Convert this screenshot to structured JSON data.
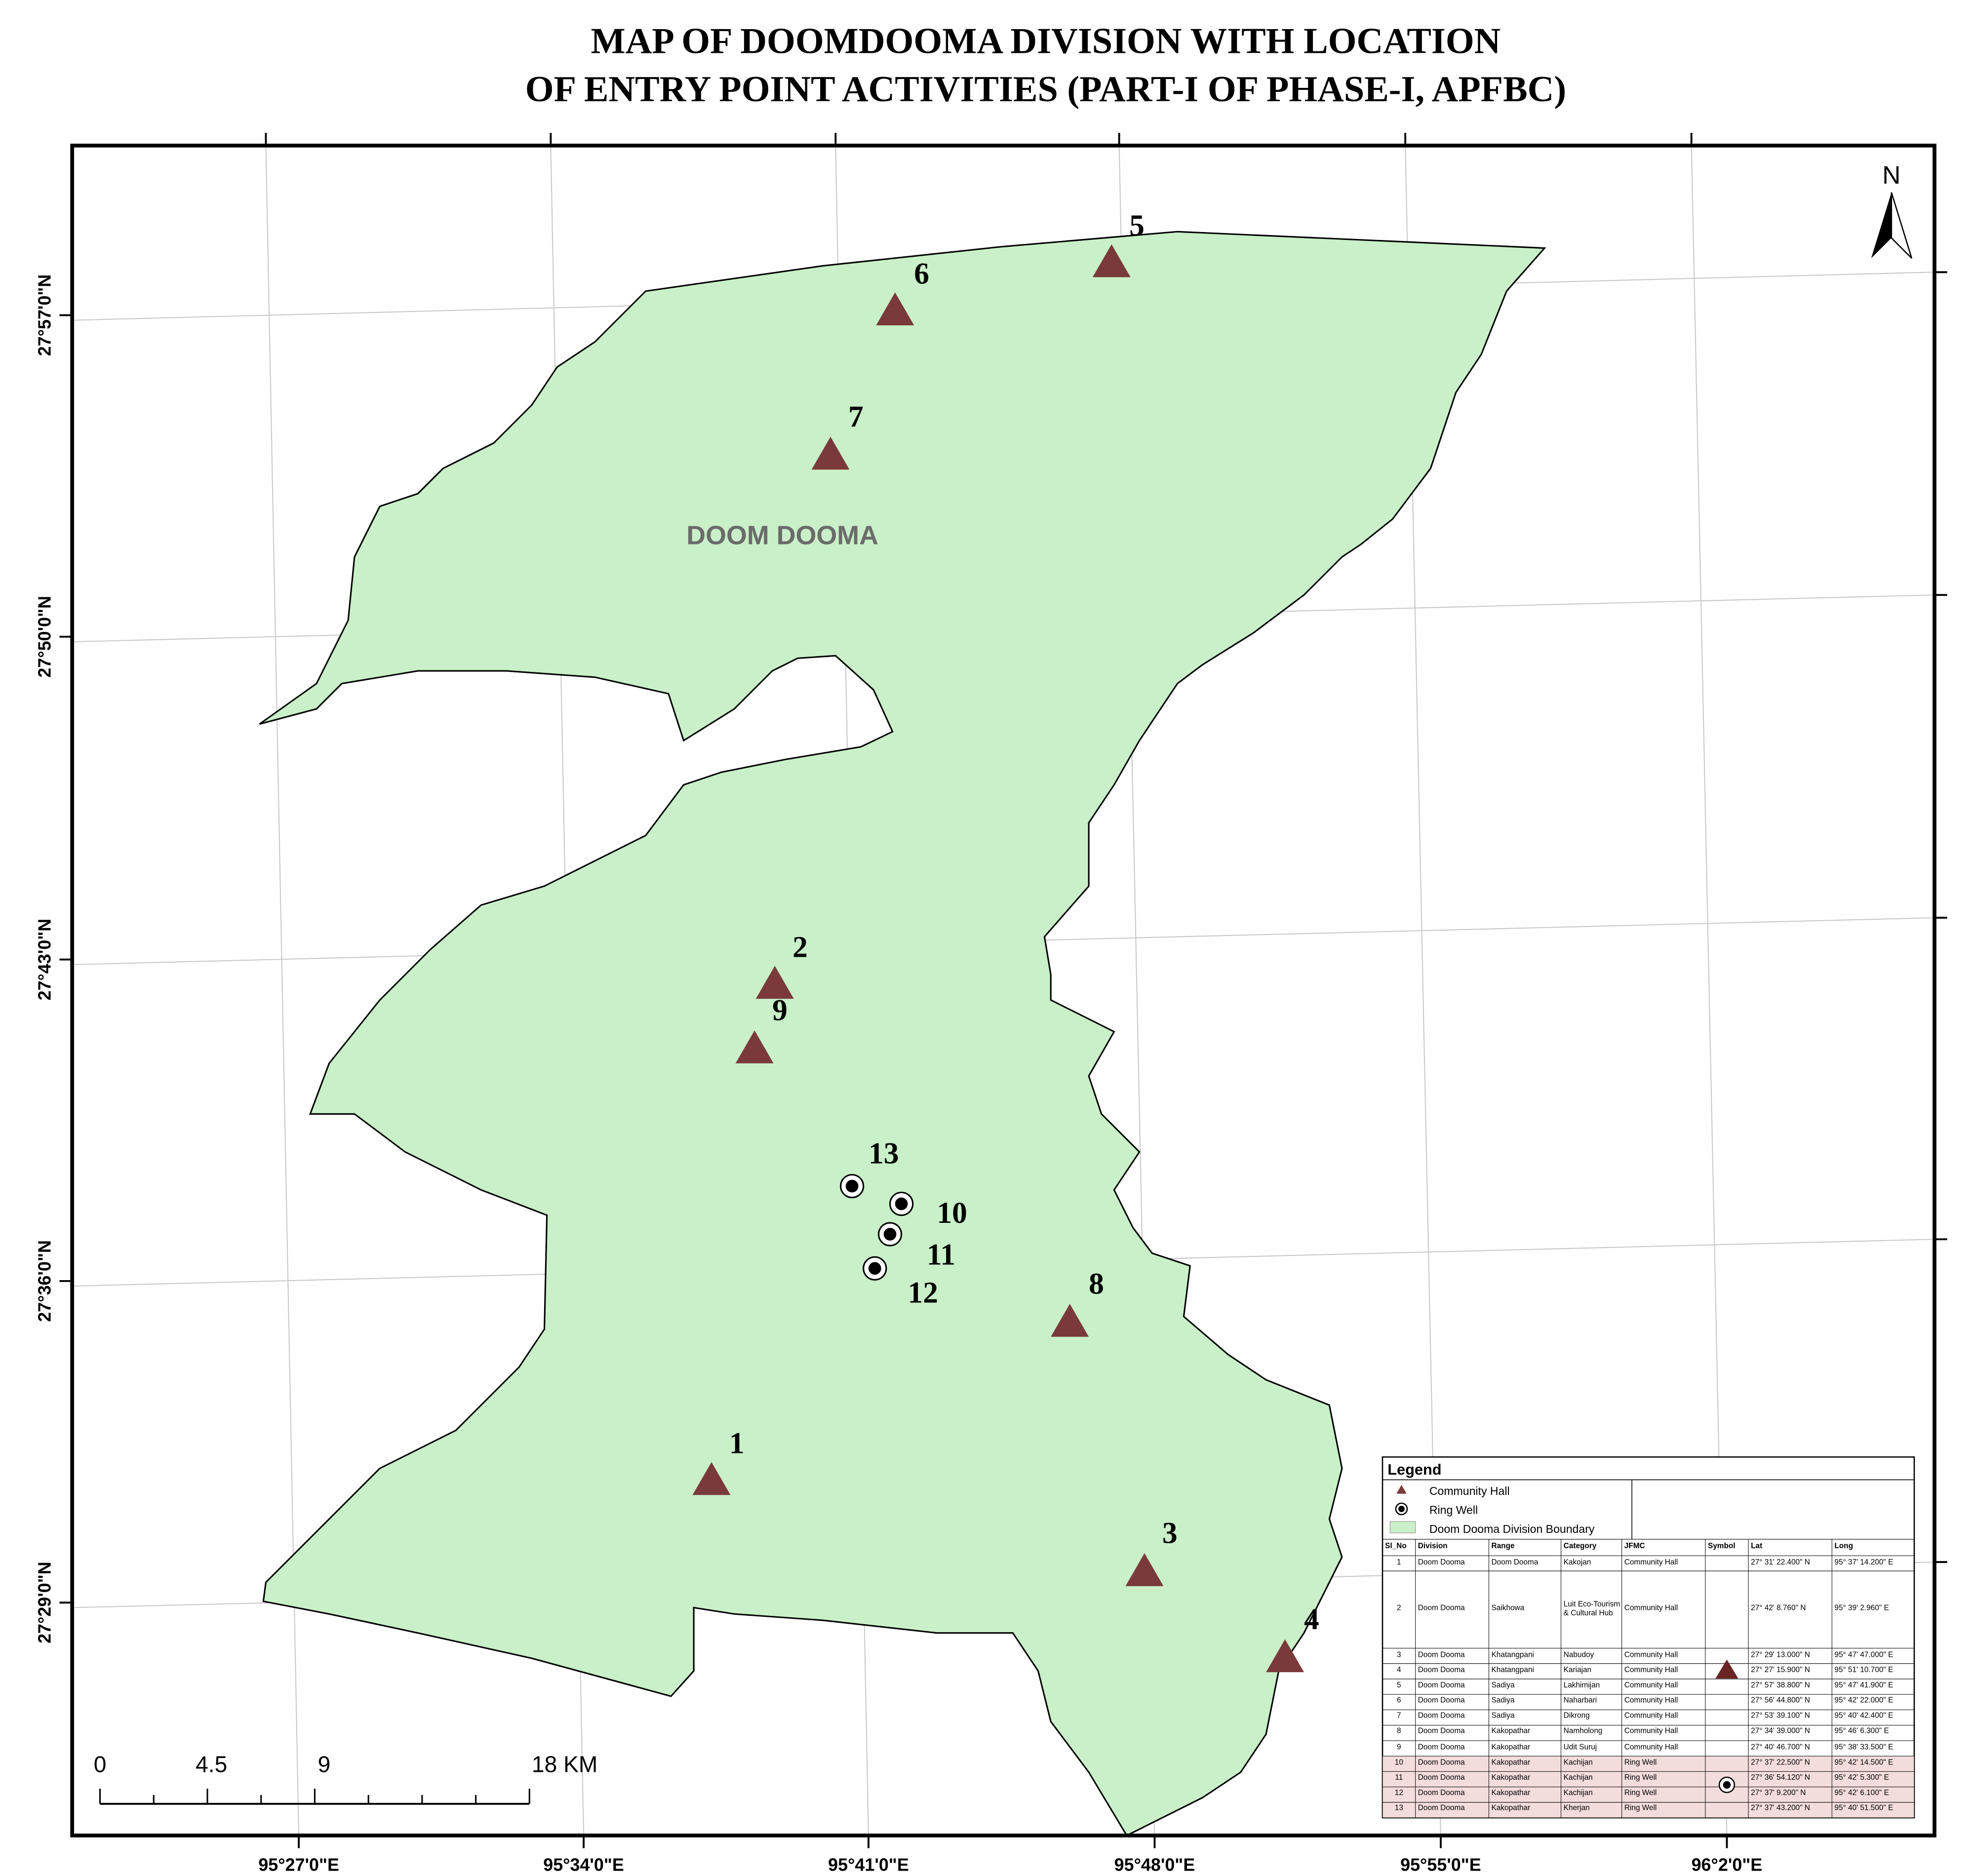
{
  "title": [
    "MAP OF DOOMDOOMA DIVISION WITH LOCATION",
    "OF ENTRY POINT ACTIVITIES (PART-I OF PHASE-I, APFBC)"
  ],
  "map": {
    "region_label": "DOOM DOOMA",
    "north": "N",
    "lon_labels": [
      "95°27'0\"E",
      "95°34'0\"E",
      "95°41'0\"E",
      "95°48'0\"E",
      "95°55'0\"E",
      "96°2'0\"E"
    ],
    "lat_labels": [
      "27°57'0\"N",
      "27°50'0\"N",
      "27°43'0\"N",
      "27°36'0\"N",
      "27°29'0\"N"
    ],
    "point_labels": [
      "1",
      "2",
      "3",
      "4",
      "5",
      "6",
      "7",
      "8",
      "9",
      "10",
      "11",
      "12",
      "13"
    ],
    "scale_labels": [
      "0",
      "4.5",
      "9",
      "18 KM"
    ]
  },
  "legend": {
    "title": "Legend",
    "items": [
      "Community Hall",
      "Ring Well",
      "Doom Dooma Division Boundary"
    ],
    "columns": [
      "Sl_No",
      "Division",
      "Range",
      "Category",
      "JFMC",
      "Symbol",
      "Lat",
      "Long"
    ],
    "rows": [
      [
        "1",
        "Doom Dooma",
        "Doom Dooma",
        "Kakojan",
        "Community Hall",
        "27° 31' 22.400\" N",
        "95° 37' 14.200\" E"
      ],
      [
        "2",
        "Doom Dooma",
        "Saikhowa",
        "Luit Eco-Tourism & Cultural Hub",
        "Community Hall",
        "27° 42' 8.760\" N",
        "95° 39' 2.960\" E"
      ],
      [
        "3",
        "Doom Dooma",
        "Khatangpani",
        "Nabudoy",
        "Community Hall",
        "27° 29' 13.000\" N",
        "95° 47' 47.000\" E"
      ],
      [
        "4",
        "Doom Dooma",
        "Khatangpani",
        "Kariajan",
        "Community Hall",
        "27° 27' 15.900\" N",
        "95° 51' 10.700\" E"
      ],
      [
        "5",
        "Doom Dooma",
        "Sadiya",
        "Lakhimijan",
        "Community Hall",
        "27° 57' 38.800\" N",
        "95° 47' 41.900\" E"
      ],
      [
        "6",
        "Doom Dooma",
        "Sadiya",
        "Naharbari",
        "Community Hall",
        "27° 56' 44.800\" N",
        "95° 42' 22.000\" E"
      ],
      [
        "7",
        "Doom Dooma",
        "Sadiya",
        "Dikrong",
        "Community Hall",
        "27° 53' 39.100\" N",
        "95° 40' 42.400\" E"
      ],
      [
        "8",
        "Doom Dooma",
        "Kakopathar",
        "Namholong",
        "Community Hall",
        "27° 34' 39.000\" N",
        "95° 46' 6.300\" E"
      ],
      [
        "9",
        "Doom Dooma",
        "Kakopathar",
        "Udit Suruj",
        "Community Hall",
        "27° 40' 46.700\" N",
        "95° 38' 33.500\" E"
      ],
      [
        "10",
        "Doom Dooma",
        "Kakopathar",
        "Kachijan",
        "Ring Well",
        "27° 37' 22.500\" N",
        "95° 42' 14.500\" E"
      ],
      [
        "11",
        "Doom Dooma",
        "Kakopathar",
        "Kachijan",
        "Ring Well",
        "27° 36' 54.120\" N",
        "95° 42' 5.300\" E"
      ],
      [
        "12",
        "Doom Dooma",
        "Kakopathar",
        "Kachijan",
        "Ring Well",
        "27° 37' 9.200\" N",
        "95° 42' 6.100\" E"
      ],
      [
        "13",
        "Doom Dooma",
        "Kakopathar",
        "Kherjan",
        "Ring Well",
        "27° 37' 43.200\" N",
        "95° 40' 51.500\" E"
      ]
    ]
  }
}
